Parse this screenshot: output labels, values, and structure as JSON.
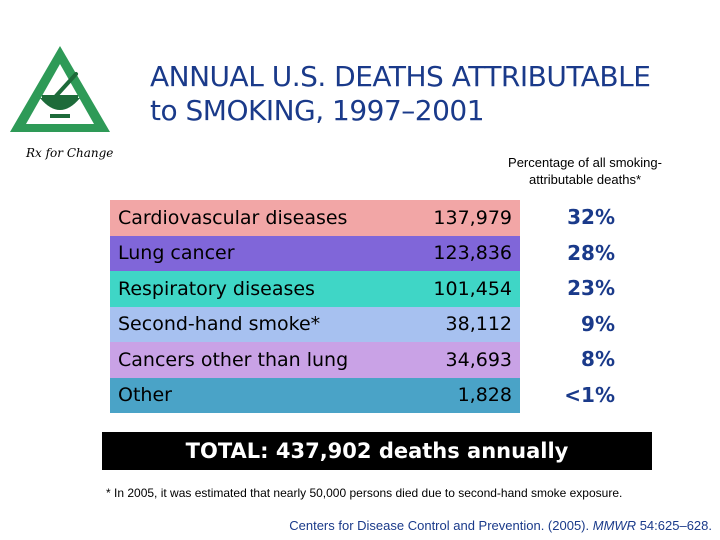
{
  "logo": {
    "text": "Rx for Change",
    "icon": "mortar-pestle-triangle-icon",
    "colors": {
      "green": "#2e9a57",
      "dark": "#1d6b3a"
    }
  },
  "title": "ANNUAL U.S. DEATHS ATTRIBUTABLE\nto SMOKING, 1997–2001",
  "percent_heading": "Percentage of all smoking-\nattributable deaths*",
  "rows": [
    {
      "label": "Cardiovascular diseases",
      "count": "137,979",
      "percent": "32%",
      "color": "#f2a6a6"
    },
    {
      "label": "Lung cancer",
      "count": "123,836",
      "percent": "28%",
      "color": "#8066d9"
    },
    {
      "label": "Respiratory diseases",
      "count": "101,454",
      "percent": "23%",
      "color": "#3fd6c6"
    },
    {
      "label": "Second-hand smoke*",
      "count": "38,112",
      "percent": "9%",
      "color": "#a7c1f0"
    },
    {
      "label": "Cancers other than lung",
      "count": "34,693",
      "percent": "8%",
      "color": "#c9a2e6"
    },
    {
      "label": "Other",
      "count": "1,828",
      "percent": "<1%",
      "color": "#4aa3c7"
    }
  ],
  "total": "TOTAL: 437,902 deaths annually",
  "footnote": "* In 2005, it was estimated that nearly 50,000 persons died due to second-hand smoke exposure.",
  "citation": {
    "prefix": "Centers for Disease Control and Prevention. (2005).",
    "journal": "MMWR",
    "suffix": "54:625–628."
  },
  "colors": {
    "title": "#1a3a8a",
    "total_bg": "#000000"
  }
}
